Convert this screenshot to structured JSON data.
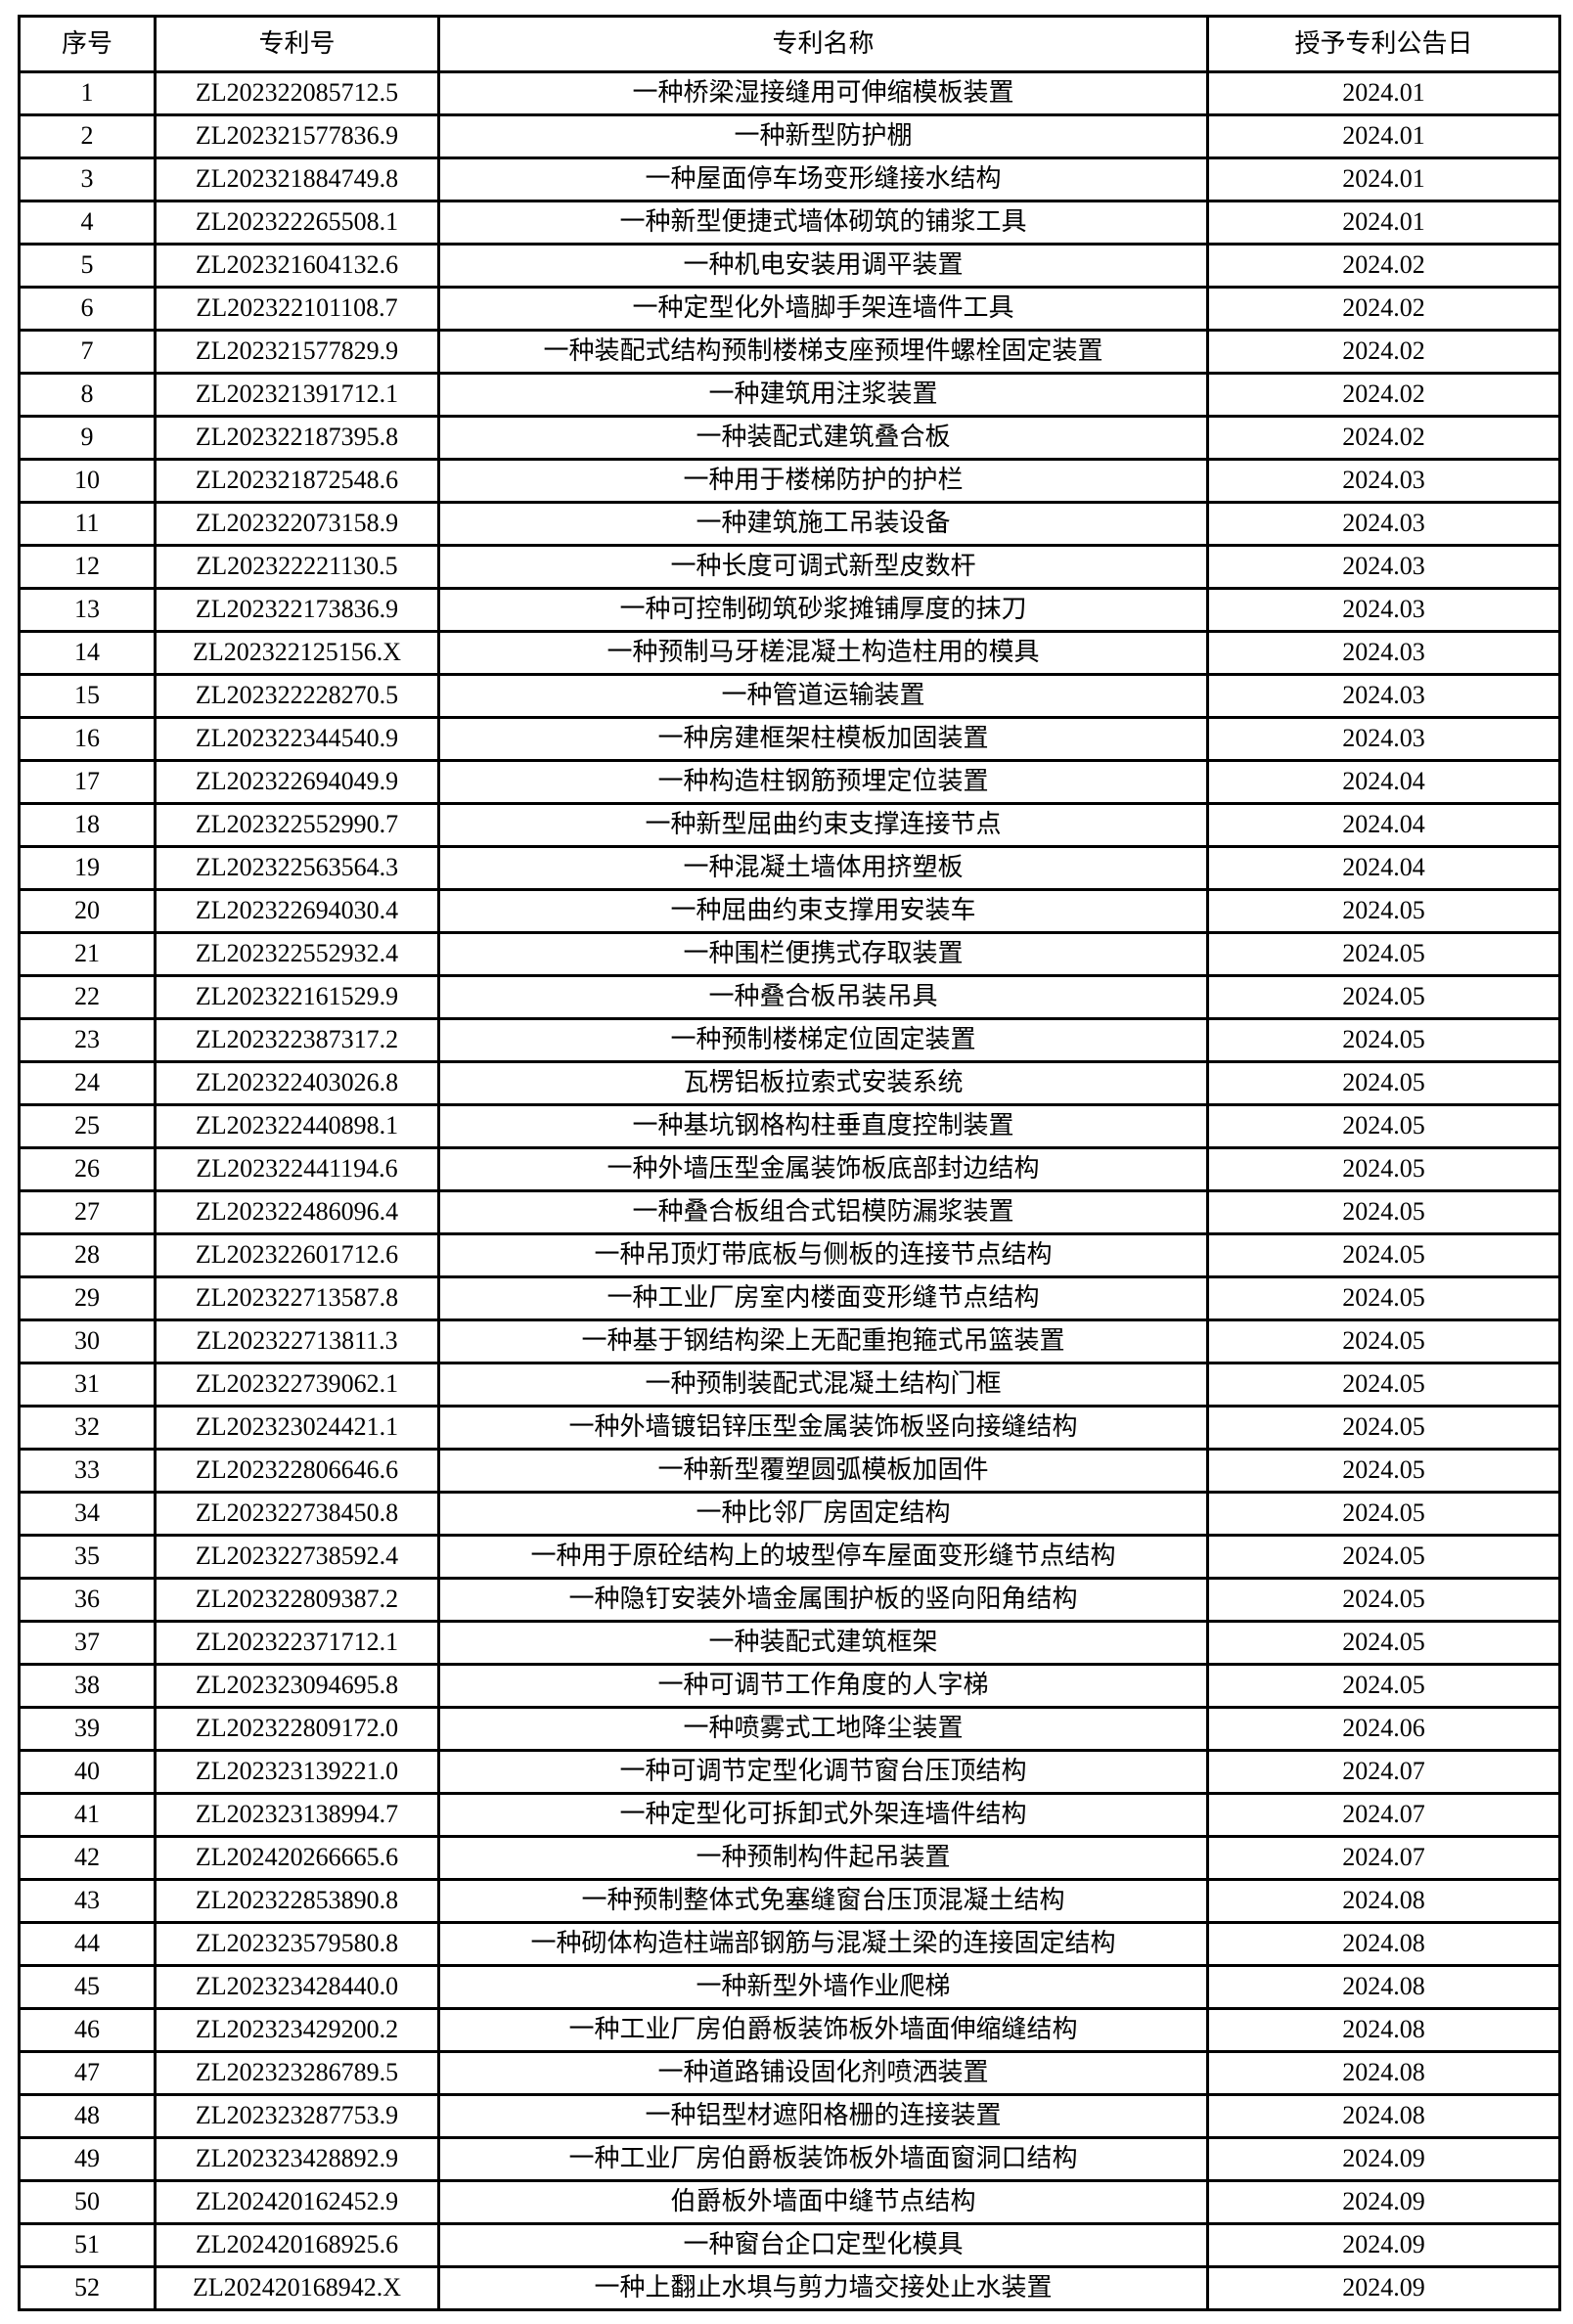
{
  "table": {
    "headers": [
      "序号",
      "专利号",
      "专利名称",
      "授予专利公告日"
    ],
    "rows": [
      {
        "no": "1",
        "patent_no": "ZL202322085712.5",
        "name": "一种桥梁湿接缝用可伸缩模板装置",
        "date": "2024.01"
      },
      {
        "no": "2",
        "patent_no": "ZL202321577836.9",
        "name": "一种新型防护棚",
        "date": "2024.01"
      },
      {
        "no": "3",
        "patent_no": "ZL202321884749.8",
        "name": "一种屋面停车场变形缝接水结构",
        "date": "2024.01"
      },
      {
        "no": "4",
        "patent_no": "ZL202322265508.1",
        "name": "一种新型便捷式墙体砌筑的铺浆工具",
        "date": "2024.01"
      },
      {
        "no": "5",
        "patent_no": "ZL202321604132.6",
        "name": "一种机电安装用调平装置",
        "date": "2024.02"
      },
      {
        "no": "6",
        "patent_no": "ZL202322101108.7",
        "name": "一种定型化外墙脚手架连墙件工具",
        "date": "2024.02"
      },
      {
        "no": "7",
        "patent_no": "ZL202321577829.9",
        "name": "一种装配式结构预制楼梯支座预埋件螺栓固定装置",
        "date": "2024.02"
      },
      {
        "no": "8",
        "patent_no": "ZL202321391712.1",
        "name": "一种建筑用注浆装置",
        "date": "2024.02"
      },
      {
        "no": "9",
        "patent_no": "ZL202322187395.8",
        "name": "一种装配式建筑叠合板",
        "date": "2024.02"
      },
      {
        "no": "10",
        "patent_no": "ZL202321872548.6",
        "name": "一种用于楼梯防护的护栏",
        "date": "2024.03"
      },
      {
        "no": "11",
        "patent_no": "ZL202322073158.9",
        "name": "一种建筑施工吊装设备",
        "date": "2024.03"
      },
      {
        "no": "12",
        "patent_no": "ZL202322221130.5",
        "name": "一种长度可调式新型皮数杆",
        "date": "2024.03"
      },
      {
        "no": "13",
        "patent_no": "ZL202322173836.9",
        "name": "一种可控制砌筑砂浆摊铺厚度的抹刀",
        "date": "2024.03"
      },
      {
        "no": "14",
        "patent_no": "ZL202322125156.X",
        "name": "一种预制马牙槎混凝土构造柱用的模具",
        "date": "2024.03"
      },
      {
        "no": "15",
        "patent_no": "ZL202322228270.5",
        "name": "一种管道运输装置",
        "date": "2024.03"
      },
      {
        "no": "16",
        "patent_no": "ZL202322344540.9",
        "name": "一种房建框架柱模板加固装置",
        "date": "2024.03"
      },
      {
        "no": "17",
        "patent_no": "ZL202322694049.9",
        "name": "一种构造柱钢筋预埋定位装置",
        "date": "2024.04"
      },
      {
        "no": "18",
        "patent_no": "ZL202322552990.7",
        "name": "一种新型屈曲约束支撑连接节点",
        "date": "2024.04"
      },
      {
        "no": "19",
        "patent_no": "ZL202322563564.3",
        "name": "一种混凝土墙体用挤塑板",
        "date": "2024.04"
      },
      {
        "no": "20",
        "patent_no": "ZL202322694030.4",
        "name": "一种屈曲约束支撑用安装车",
        "date": "2024.05"
      },
      {
        "no": "21",
        "patent_no": "ZL202322552932.4",
        "name": "一种围栏便携式存取装置",
        "date": "2024.05"
      },
      {
        "no": "22",
        "patent_no": "ZL202322161529.9",
        "name": "一种叠合板吊装吊具",
        "date": "2024.05"
      },
      {
        "no": "23",
        "patent_no": "ZL202322387317.2",
        "name": "一种预制楼梯定位固定装置",
        "date": "2024.05"
      },
      {
        "no": "24",
        "patent_no": "ZL202322403026.8",
        "name": "瓦楞铝板拉索式安装系统",
        "date": "2024.05"
      },
      {
        "no": "25",
        "patent_no": "ZL202322440898.1",
        "name": "一种基坑钢格构柱垂直度控制装置",
        "date": "2024.05"
      },
      {
        "no": "26",
        "patent_no": "ZL202322441194.6",
        "name": "一种外墙压型金属装饰板底部封边结构",
        "date": "2024.05"
      },
      {
        "no": "27",
        "patent_no": "ZL202322486096.4",
        "name": "一种叠合板组合式铝模防漏浆装置",
        "date": "2024.05"
      },
      {
        "no": "28",
        "patent_no": "ZL202322601712.6",
        "name": "一种吊顶灯带底板与侧板的连接节点结构",
        "date": "2024.05"
      },
      {
        "no": "29",
        "patent_no": "ZL202322713587.8",
        "name": "一种工业厂房室内楼面变形缝节点结构",
        "date": "2024.05"
      },
      {
        "no": "30",
        "patent_no": "ZL202322713811.3",
        "name": "一种基于钢结构梁上无配重抱箍式吊篮装置",
        "date": "2024.05"
      },
      {
        "no": "31",
        "patent_no": "ZL202322739062.1",
        "name": "一种预制装配式混凝土结构门框",
        "date": "2024.05"
      },
      {
        "no": "32",
        "patent_no": "ZL202323024421.1",
        "name": "一种外墙镀铝锌压型金属装饰板竖向接缝结构",
        "date": "2024.05"
      },
      {
        "no": "33",
        "patent_no": "ZL202322806646.6",
        "name": "一种新型覆塑圆弧模板加固件",
        "date": "2024.05"
      },
      {
        "no": "34",
        "patent_no": "ZL202322738450.8",
        "name": "一种比邻厂房固定结构",
        "date": "2024.05"
      },
      {
        "no": "35",
        "patent_no": "ZL202322738592.4",
        "name": "一种用于原砼结构上的坡型停车屋面变形缝节点结构",
        "date": "2024.05"
      },
      {
        "no": "36",
        "patent_no": "ZL202322809387.2",
        "name": "一种隐钉安装外墙金属围护板的竖向阳角结构",
        "date": "2024.05"
      },
      {
        "no": "37",
        "patent_no": "ZL202322371712.1",
        "name": "一种装配式建筑框架",
        "date": "2024.05"
      },
      {
        "no": "38",
        "patent_no": "ZL202323094695.8",
        "name": "一种可调节工作角度的人字梯",
        "date": "2024.05"
      },
      {
        "no": "39",
        "patent_no": "ZL202322809172.0",
        "name": "一种喷雾式工地降尘装置",
        "date": "2024.06"
      },
      {
        "no": "40",
        "patent_no": "ZL202323139221.0",
        "name": "一种可调节定型化调节窗台压顶结构",
        "date": "2024.07"
      },
      {
        "no": "41",
        "patent_no": "ZL202323138994.7",
        "name": "一种定型化可拆卸式外架连墙件结构",
        "date": "2024.07"
      },
      {
        "no": "42",
        "patent_no": "ZL202420266665.6",
        "name": "一种预制构件起吊装置",
        "date": "2024.07"
      },
      {
        "no": "43",
        "patent_no": "ZL202322853890.8",
        "name": "一种预制整体式免塞缝窗台压顶混凝土结构",
        "date": "2024.08"
      },
      {
        "no": "44",
        "patent_no": "ZL202323579580.8",
        "name": "一种砌体构造柱端部钢筋与混凝土梁的连接固定结构",
        "date": "2024.08"
      },
      {
        "no": "45",
        "patent_no": "ZL202323428440.0",
        "name": "一种新型外墙作业爬梯",
        "date": "2024.08"
      },
      {
        "no": "46",
        "patent_no": "ZL202323429200.2",
        "name": "一种工业厂房伯爵板装饰板外墙面伸缩缝结构",
        "date": "2024.08"
      },
      {
        "no": "47",
        "patent_no": "ZL202323286789.5",
        "name": "一种道路铺设固化剂喷洒装置",
        "date": "2024.08"
      },
      {
        "no": "48",
        "patent_no": "ZL202323287753.9",
        "name": "一种铝型材遮阳格栅的连接装置",
        "date": "2024.08"
      },
      {
        "no": "49",
        "patent_no": "ZL202323428892.9",
        "name": "一种工业厂房伯爵板装饰板外墙面窗洞口结构",
        "date": "2024.09"
      },
      {
        "no": "50",
        "patent_no": "ZL202420162452.9",
        "name": "伯爵板外墙面中缝节点结构",
        "date": "2024.09"
      },
      {
        "no": "51",
        "patent_no": "ZL202420168925.6",
        "name": "一种窗台企口定型化模具",
        "date": "2024.09"
      },
      {
        "no": "52",
        "patent_no": "ZL202420168942.X",
        "name": "一种上翻止水埧与剪力墙交接处止水装置",
        "date": "2024.09"
      }
    ]
  }
}
